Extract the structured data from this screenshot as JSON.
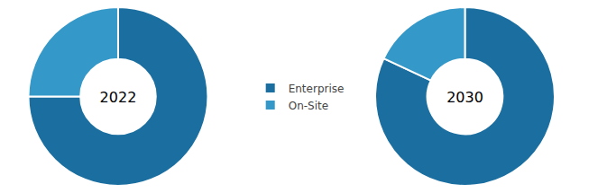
{
  "chart_data": [
    {
      "type": "pie",
      "title": "2022",
      "categories": [
        "Enterprise",
        "On-Site"
      ],
      "values": [
        75,
        25
      ],
      "colors": [
        "#1a6fa0",
        "#3498c8"
      ],
      "legend": "center"
    },
    {
      "type": "pie",
      "title": "2030",
      "categories": [
        "Enterprise",
        "On-Site"
      ],
      "values": [
        82,
        18
      ],
      "colors": [
        "#1a6fa0",
        "#3498c8"
      ],
      "legend": "center"
    }
  ]
}
